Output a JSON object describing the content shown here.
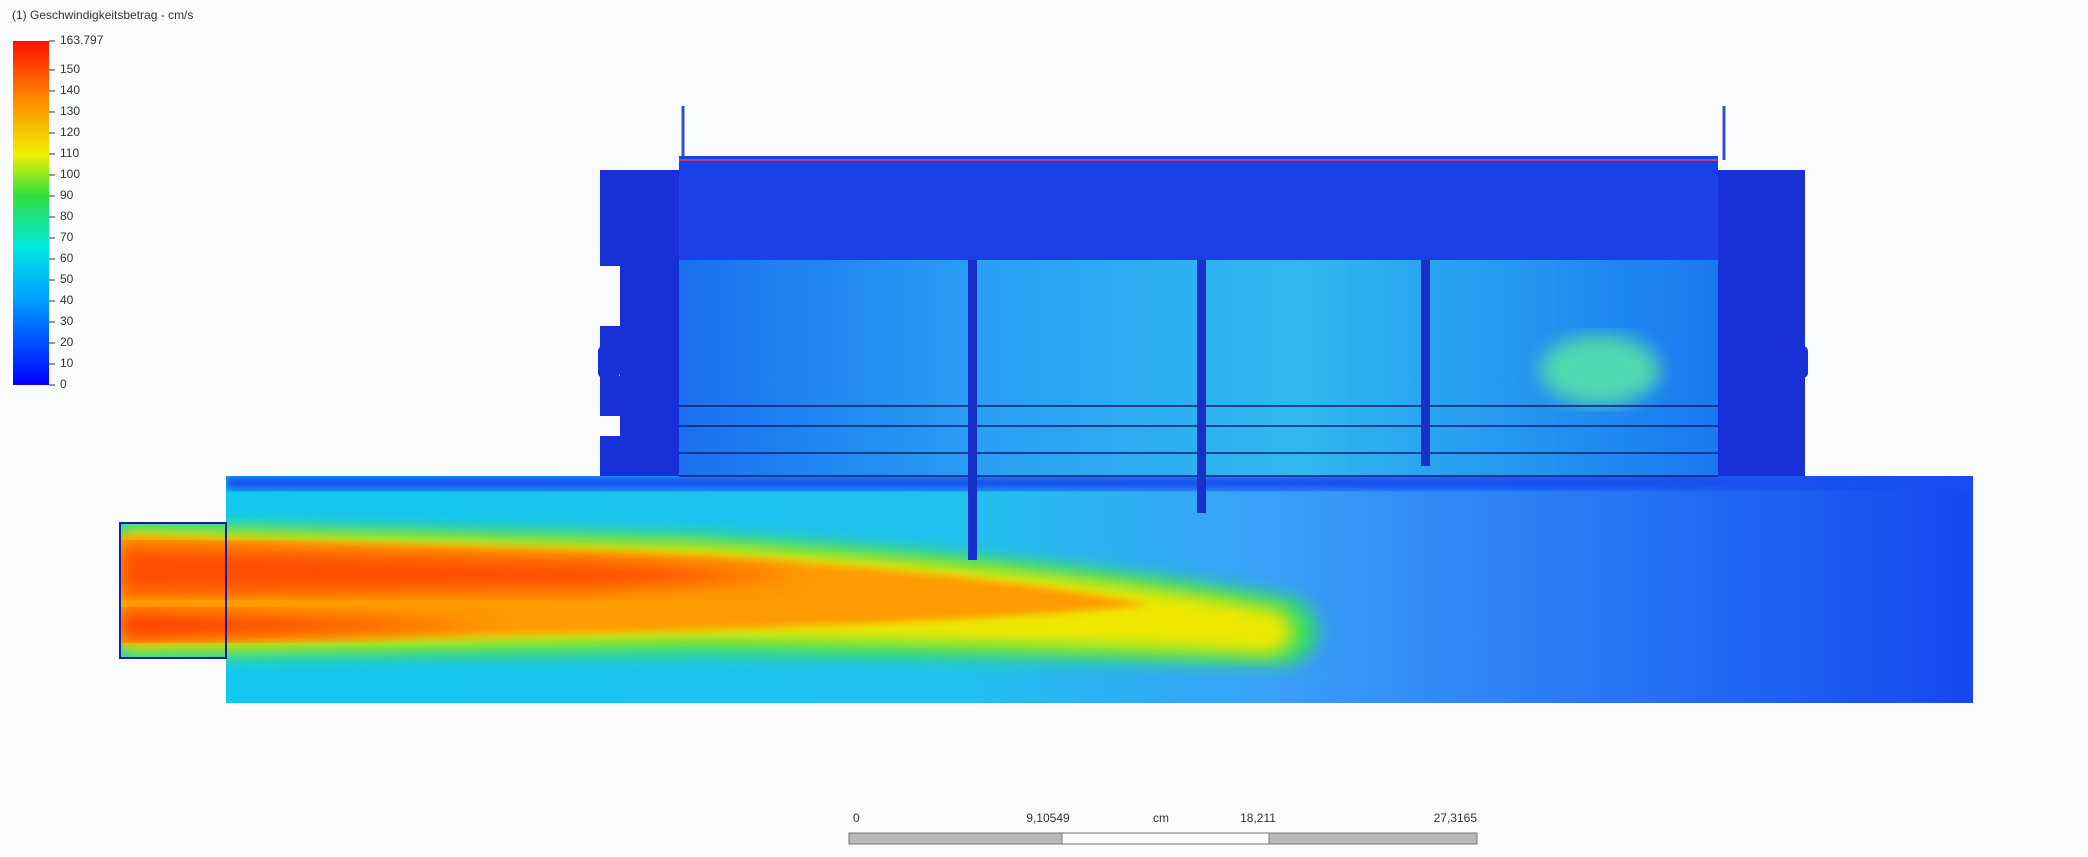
{
  "legend": {
    "title": "(1) Geschwindigkeitsbetrag - cm/s",
    "labels": [
      "163.797",
      "150",
      "140",
      "130",
      "120",
      "110",
      "100",
      "90",
      "80",
      "70",
      "60",
      "50",
      "40",
      "30",
      "20",
      "10",
      "0"
    ]
  },
  "scale_bar": {
    "labels": [
      "0",
      "9,10549",
      "cm",
      "18,211",
      "27,3165"
    ]
  }
}
